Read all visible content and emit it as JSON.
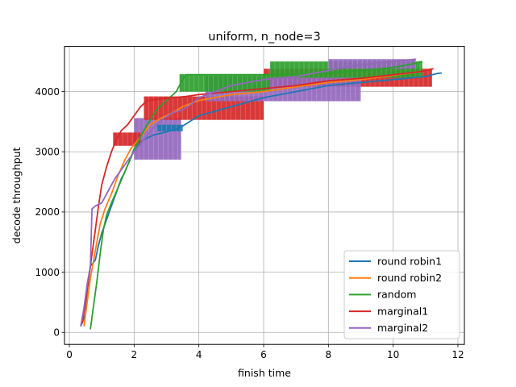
{
  "chart_data": {
    "type": "line",
    "title": "uniform, n_node=3",
    "xlabel": "finish time",
    "ylabel": "decode throughput",
    "xlim": [
      -0.15,
      12.2
    ],
    "ylim": [
      -200,
      4750
    ],
    "xticks": [
      0,
      2,
      4,
      6,
      8,
      10,
      12
    ],
    "yticks": [
      0,
      1000,
      2000,
      3000,
      4000
    ],
    "grid": true,
    "legend": "lower-right",
    "series": [
      {
        "name": "round robin1",
        "color": "#1f77b4",
        "points": [
          [
            0.35,
            100
          ],
          [
            0.5,
            300
          ],
          [
            0.55,
            700
          ],
          [
            0.65,
            1100
          ],
          [
            0.8,
            1200
          ],
          [
            0.9,
            1450
          ],
          [
            1.0,
            1650
          ],
          [
            1.1,
            1800
          ],
          [
            1.2,
            1950
          ],
          [
            1.3,
            2100
          ],
          [
            1.4,
            2250
          ],
          [
            1.5,
            2400
          ],
          [
            1.6,
            2550
          ],
          [
            1.7,
            2650
          ],
          [
            1.8,
            2780
          ],
          [
            1.9,
            2900
          ],
          [
            2.0,
            3050
          ],
          [
            2.3,
            3200
          ],
          [
            2.6,
            3280
          ],
          [
            3.0,
            3330
          ],
          [
            3.3,
            3380
          ],
          [
            3.5,
            3430
          ],
          [
            4.0,
            3600
          ],
          [
            5.0,
            3750
          ],
          [
            6.0,
            3900
          ],
          [
            7.0,
            4000
          ],
          [
            8.0,
            4100
          ],
          [
            9.0,
            4150
          ],
          [
            10.0,
            4200
          ],
          [
            11.0,
            4250
          ],
          [
            11.35,
            4300
          ],
          [
            11.5,
            4310
          ]
        ]
      },
      {
        "name": "round robin2",
        "color": "#ff7f0e",
        "points": [
          [
            0.45,
            100
          ],
          [
            0.55,
            500
          ],
          [
            0.65,
            900
          ],
          [
            0.75,
            1200
          ],
          [
            0.85,
            1500
          ],
          [
            0.95,
            1800
          ],
          [
            1.1,
            2050
          ],
          [
            1.3,
            2300
          ],
          [
            1.5,
            2600
          ],
          [
            1.7,
            2850
          ],
          [
            1.9,
            3050
          ],
          [
            2.2,
            3250
          ],
          [
            2.5,
            3450
          ],
          [
            2.8,
            3550
          ],
          [
            3.2,
            3650
          ],
          [
            3.5,
            3750
          ],
          [
            4.0,
            3850
          ],
          [
            5.0,
            3950
          ],
          [
            6.0,
            4000
          ],
          [
            7.0,
            4080
          ],
          [
            8.0,
            4150
          ],
          [
            9.0,
            4200
          ],
          [
            10.0,
            4270
          ],
          [
            10.8,
            4330
          ],
          [
            11.2,
            4380
          ]
        ]
      },
      {
        "name": "random",
        "color": "#2ca02c",
        "points": [
          [
            0.65,
            50
          ],
          [
            0.75,
            450
          ],
          [
            0.85,
            850
          ],
          [
            0.95,
            1300
          ],
          [
            1.05,
            1700
          ],
          [
            1.15,
            1950
          ],
          [
            1.3,
            2150
          ],
          [
            1.5,
            2400
          ],
          [
            1.7,
            2650
          ],
          [
            1.9,
            2900
          ],
          [
            2.1,
            3150
          ],
          [
            2.4,
            3450
          ],
          [
            2.7,
            3700
          ],
          [
            3.0,
            3850
          ],
          [
            3.3,
            4000
          ],
          [
            3.45,
            4150
          ],
          [
            3.6,
            4280
          ],
          [
            4.5,
            4280
          ],
          [
            6.0,
            4280
          ],
          [
            7.0,
            4290
          ],
          [
            8.0,
            4300
          ],
          [
            9.0,
            4350
          ],
          [
            10.0,
            4400
          ],
          [
            10.5,
            4450
          ],
          [
            10.9,
            4500
          ]
        ]
      },
      {
        "name": "marginal1",
        "color": "#d62728",
        "points": [
          [
            0.4,
            150
          ],
          [
            0.5,
            500
          ],
          [
            0.6,
            900
          ],
          [
            0.7,
            1300
          ],
          [
            0.8,
            1700
          ],
          [
            0.9,
            2100
          ],
          [
            1.0,
            2450
          ],
          [
            1.15,
            2750
          ],
          [
            1.3,
            3000
          ],
          [
            1.45,
            3200
          ],
          [
            1.6,
            3350
          ],
          [
            1.8,
            3450
          ],
          [
            2.0,
            3600
          ],
          [
            2.2,
            3750
          ],
          [
            2.4,
            3850
          ],
          [
            2.8,
            3880
          ],
          [
            3.2,
            3900
          ],
          [
            3.6,
            3920
          ],
          [
            4.0,
            3950
          ],
          [
            5.0,
            4000
          ],
          [
            6.0,
            4050
          ],
          [
            7.0,
            4100
          ],
          [
            8.0,
            4180
          ],
          [
            9.0,
            4220
          ],
          [
            10.0,
            4280
          ],
          [
            10.8,
            4330
          ],
          [
            11.25,
            4380
          ]
        ]
      },
      {
        "name": "marginal2",
        "color": "#9467bd",
        "points": [
          [
            0.35,
            100
          ],
          [
            0.45,
            400
          ],
          [
            0.55,
            800
          ],
          [
            0.65,
            1100
          ],
          [
            0.7,
            2050
          ],
          [
            0.8,
            2100
          ],
          [
            1.0,
            2150
          ],
          [
            1.2,
            2350
          ],
          [
            1.4,
            2550
          ],
          [
            1.6,
            2700
          ],
          [
            1.8,
            2850
          ],
          [
            2.0,
            3000
          ],
          [
            2.3,
            3200
          ],
          [
            2.6,
            3400
          ],
          [
            2.9,
            3550
          ],
          [
            3.2,
            3650
          ],
          [
            3.5,
            3700
          ],
          [
            3.8,
            3800
          ],
          [
            4.0,
            3900
          ],
          [
            4.5,
            4000
          ],
          [
            5.0,
            4100
          ],
          [
            6.0,
            4200
          ],
          [
            7.0,
            4250
          ],
          [
            8.0,
            4350
          ],
          [
            9.0,
            4450
          ],
          [
            10.0,
            4500
          ],
          [
            10.7,
            4540
          ]
        ]
      }
    ],
    "bands": [
      {
        "series": 4,
        "x0": 2.0,
        "x1": 3.45,
        "y0": 2870,
        "y1": 3560
      },
      {
        "series": 3,
        "x0": 2.3,
        "x1": 6.0,
        "y0": 3530,
        "y1": 3920
      },
      {
        "series": 3,
        "x0": 6.0,
        "x1": 11.2,
        "y0": 4080,
        "y1": 4380
      },
      {
        "series": 4,
        "x0": 4.2,
        "x1": 9.0,
        "y0": 3840,
        "y1": 4250
      },
      {
        "series": 2,
        "x0": 3.4,
        "x1": 6.2,
        "y0": 4000,
        "y1": 4290
      },
      {
        "series": 2,
        "x0": 6.2,
        "x1": 10.9,
        "y0": 4230,
        "y1": 4500
      },
      {
        "series": 4,
        "x0": 8.0,
        "x1": 10.7,
        "y0": 4380,
        "y1": 4540
      },
      {
        "series": 3,
        "x0": 1.35,
        "x1": 2.2,
        "y0": 3100,
        "y1": 3320
      },
      {
        "series": 0,
        "x0": 2.7,
        "x1": 3.5,
        "y0": 3340,
        "y1": 3450
      }
    ]
  }
}
